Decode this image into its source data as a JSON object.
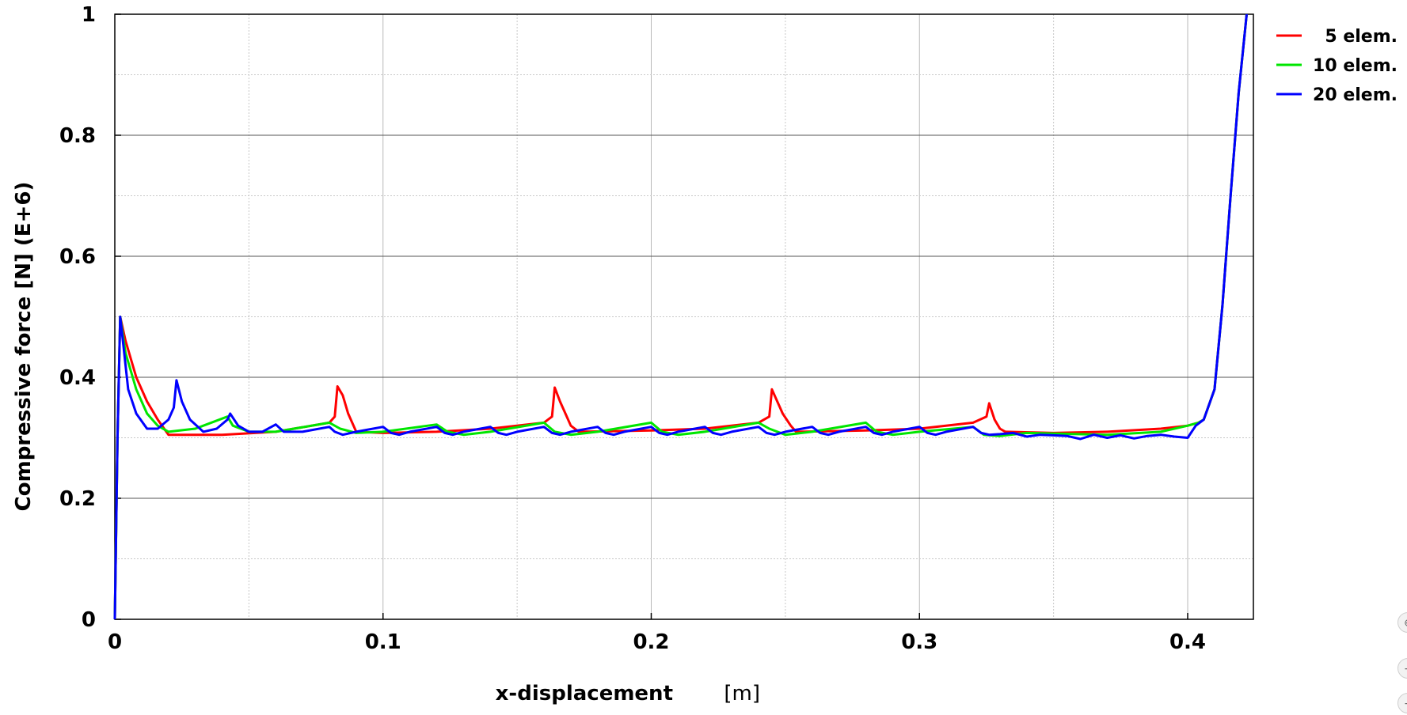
{
  "chart_data": {
    "type": "line",
    "title": "",
    "xlabel": "x-displacement",
    "xlabel_unit": "[m]",
    "ylabel": "Compressive force [N] (E+6)",
    "xlim": [
      0,
      0.4245
    ],
    "ylim": [
      0,
      1
    ],
    "x_ticks": [
      0,
      0.1,
      0.2,
      0.3,
      0.4
    ],
    "x_tick_labels": [
      "0",
      "0.1",
      "0.2",
      "0.3",
      "0.4"
    ],
    "y_ticks": [
      0,
      0.2,
      0.4,
      0.6,
      0.8,
      1
    ],
    "y_tick_labels": [
      "0",
      "0.2",
      "0.4",
      "0.6",
      "0.8",
      "1"
    ],
    "grid": true,
    "legend_position": "right, outside top",
    "series": [
      {
        "name": "5 elem.",
        "color": "#ff0000",
        "x": [
          0,
          0.001,
          0.002,
          0.004,
          0.008,
          0.012,
          0.016,
          0.02,
          0.025,
          0.04,
          0.06,
          0.08,
          0.082,
          0.083,
          0.085,
          0.087,
          0.09,
          0.1,
          0.12,
          0.14,
          0.16,
          0.163,
          0.164,
          0.166,
          0.168,
          0.17,
          0.173,
          0.2,
          0.22,
          0.24,
          0.244,
          0.245,
          0.247,
          0.249,
          0.252,
          0.254,
          0.28,
          0.3,
          0.32,
          0.325,
          0.326,
          0.328,
          0.33,
          0.332,
          0.35,
          0.37,
          0.39,
          0.4,
          0.404,
          0.406,
          0.41,
          0.413,
          0.416,
          0.419,
          0.422
        ],
        "values": [
          0,
          0.3,
          0.5,
          0.46,
          0.4,
          0.36,
          0.33,
          0.305,
          0.305,
          0.305,
          0.31,
          0.325,
          0.335,
          0.385,
          0.37,
          0.34,
          0.31,
          0.308,
          0.31,
          0.315,
          0.325,
          0.335,
          0.383,
          0.36,
          0.34,
          0.32,
          0.31,
          0.312,
          0.315,
          0.325,
          0.335,
          0.38,
          0.36,
          0.34,
          0.32,
          0.31,
          0.312,
          0.315,
          0.325,
          0.335,
          0.357,
          0.33,
          0.315,
          0.31,
          0.308,
          0.31,
          0.315,
          0.32,
          0.325,
          0.33,
          0.38,
          0.52,
          0.7,
          0.87,
          1.0
        ]
      },
      {
        "name": "10 elem.",
        "color": "#00e600",
        "x": [
          0,
          0.001,
          0.002,
          0.004,
          0.008,
          0.012,
          0.016,
          0.02,
          0.03,
          0.042,
          0.044,
          0.05,
          0.06,
          0.08,
          0.084,
          0.09,
          0.1,
          0.12,
          0.124,
          0.13,
          0.14,
          0.16,
          0.164,
          0.17,
          0.18,
          0.2,
          0.204,
          0.21,
          0.22,
          0.24,
          0.244,
          0.25,
          0.26,
          0.28,
          0.284,
          0.29,
          0.3,
          0.32,
          0.324,
          0.33,
          0.34,
          0.37,
          0.39,
          0.4,
          0.404,
          0.406,
          0.41,
          0.413,
          0.416,
          0.419,
          0.422
        ],
        "values": [
          0,
          0.3,
          0.5,
          0.44,
          0.38,
          0.34,
          0.32,
          0.31,
          0.315,
          0.335,
          0.32,
          0.31,
          0.31,
          0.325,
          0.315,
          0.308,
          0.31,
          0.322,
          0.31,
          0.305,
          0.31,
          0.325,
          0.31,
          0.305,
          0.31,
          0.325,
          0.31,
          0.305,
          0.31,
          0.325,
          0.315,
          0.305,
          0.31,
          0.325,
          0.31,
          0.305,
          0.31,
          0.318,
          0.305,
          0.303,
          0.308,
          0.305,
          0.31,
          0.32,
          0.325,
          0.33,
          0.38,
          0.52,
          0.7,
          0.87,
          1.0
        ]
      },
      {
        "name": "20 elem.",
        "color": "#0000ff",
        "x": [
          0,
          0.001,
          0.002,
          0.003,
          0.005,
          0.008,
          0.012,
          0.016,
          0.02,
          0.022,
          0.023,
          0.025,
          0.028,
          0.033,
          0.038,
          0.042,
          0.043,
          0.046,
          0.05,
          0.055,
          0.06,
          0.063,
          0.066,
          0.07,
          0.08,
          0.082,
          0.085,
          0.09,
          0.1,
          0.103,
          0.106,
          0.11,
          0.12,
          0.123,
          0.126,
          0.13,
          0.14,
          0.143,
          0.146,
          0.15,
          0.16,
          0.163,
          0.166,
          0.17,
          0.18,
          0.183,
          0.186,
          0.19,
          0.2,
          0.203,
          0.206,
          0.21,
          0.22,
          0.223,
          0.226,
          0.23,
          0.24,
          0.243,
          0.246,
          0.25,
          0.26,
          0.263,
          0.266,
          0.27,
          0.28,
          0.283,
          0.286,
          0.29,
          0.3,
          0.303,
          0.306,
          0.31,
          0.32,
          0.323,
          0.326,
          0.33,
          0.335,
          0.34,
          0.345,
          0.35,
          0.355,
          0.36,
          0.365,
          0.37,
          0.375,
          0.38,
          0.385,
          0.39,
          0.395,
          0.4,
          0.403,
          0.406,
          0.41,
          0.413,
          0.416,
          0.419,
          0.422
        ],
        "values": [
          0,
          0.3,
          0.5,
          0.46,
          0.38,
          0.34,
          0.315,
          0.315,
          0.33,
          0.35,
          0.395,
          0.36,
          0.33,
          0.31,
          0.315,
          0.33,
          0.34,
          0.32,
          0.31,
          0.31,
          0.322,
          0.31,
          0.31,
          0.31,
          0.318,
          0.31,
          0.305,
          0.31,
          0.318,
          0.308,
          0.305,
          0.31,
          0.318,
          0.308,
          0.305,
          0.31,
          0.318,
          0.308,
          0.305,
          0.31,
          0.318,
          0.308,
          0.305,
          0.31,
          0.318,
          0.308,
          0.305,
          0.31,
          0.318,
          0.308,
          0.305,
          0.31,
          0.318,
          0.308,
          0.305,
          0.31,
          0.318,
          0.308,
          0.305,
          0.31,
          0.318,
          0.308,
          0.305,
          0.31,
          0.318,
          0.308,
          0.305,
          0.31,
          0.318,
          0.308,
          0.305,
          0.31,
          0.318,
          0.308,
          0.305,
          0.306,
          0.308,
          0.302,
          0.305,
          0.304,
          0.303,
          0.298,
          0.305,
          0.3,
          0.304,
          0.299,
          0.303,
          0.305,
          0.302,
          0.3,
          0.32,
          0.33,
          0.38,
          0.52,
          0.7,
          0.87,
          1.0
        ]
      }
    ]
  },
  "zoom_controls": {
    "fit_label": "⊕",
    "zoom_in_label": "+",
    "zoom_out_label": "−"
  }
}
